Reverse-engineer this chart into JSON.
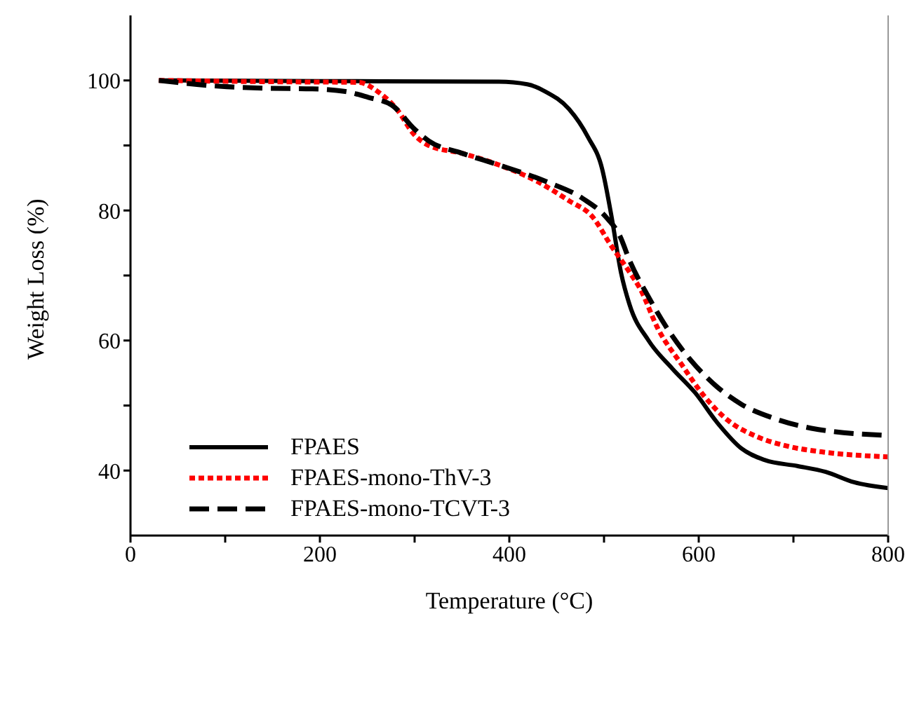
{
  "chart_data": {
    "type": "line",
    "xlabel": "Temperature (°C)",
    "ylabel": "Weight Loss (%)",
    "xlim": [
      0,
      800
    ],
    "ylim": [
      30,
      110
    ],
    "xticks": [
      0,
      {
        "value": 100,
        "label": null
      },
      200,
      {
        "value": 300,
        "label": null
      },
      400,
      {
        "value": 500,
        "label": null
      },
      600,
      {
        "value": 700,
        "label": null
      },
      800
    ],
    "yticks": [
      40,
      {
        "value": 50,
        "label": null
      },
      60,
      {
        "value": 70,
        "label": null
      },
      80,
      {
        "value": 90,
        "label": null
      },
      100
    ],
    "grid": false,
    "legend": "bottom left",
    "marker": "none",
    "series": [
      {
        "name": "FPAES",
        "color": "#000000",
        "line_style": "solid",
        "x": [
          30,
          200,
          389,
          419,
          438,
          463,
          483,
          498,
          508,
          518,
          527,
          547,
          572,
          596,
          621,
          645,
          670,
          704,
          734,
          764,
          800
        ],
        "values": [
          100,
          99.9,
          99.8,
          99.4,
          98.3,
          95.6,
          91.3,
          86.4,
          79,
          70.4,
          65.5,
          60,
          55.7,
          52,
          47.1,
          43.4,
          41.6,
          40.7,
          39.8,
          38.2,
          37.3
        ]
      },
      {
        "name": "FPAES-mono-ThV-3",
        "color": "#ff0000",
        "line_style": "dotted",
        "x": [
          30,
          150,
          241,
          261,
          281,
          300,
          315,
          350,
          389,
          429,
          463,
          488,
          507,
          527,
          538,
          557,
          582,
          606,
          631,
          660,
          695,
          734,
          800
        ],
        "values": [
          100,
          99.8,
          99.7,
          98.3,
          95.6,
          91.6,
          90,
          88.8,
          87,
          84.5,
          81.5,
          79,
          74.7,
          70.5,
          68,
          61.8,
          56.3,
          51.4,
          47.7,
          45.3,
          43.7,
          42.8,
          42.1
        ]
      },
      {
        "name": "FPAES-mono-TCVT-3",
        "color": "#000000",
        "line_style": "dashed",
        "x": [
          30,
          94,
          143,
          192,
          227,
          251,
          276,
          300,
          315,
          350,
          389,
          438,
          478,
          502,
          517,
          527,
          547,
          567,
          592,
          616,
          645,
          680,
          719,
          800
        ],
        "values": [
          100,
          99.1,
          98.8,
          98.7,
          98.3,
          97.4,
          96.2,
          92.5,
          90.7,
          88.8,
          87,
          84.5,
          81.8,
          79,
          76,
          72.3,
          66.7,
          61.8,
          56.9,
          53.3,
          50.2,
          48,
          46.5,
          45.4
        ]
      }
    ]
  }
}
